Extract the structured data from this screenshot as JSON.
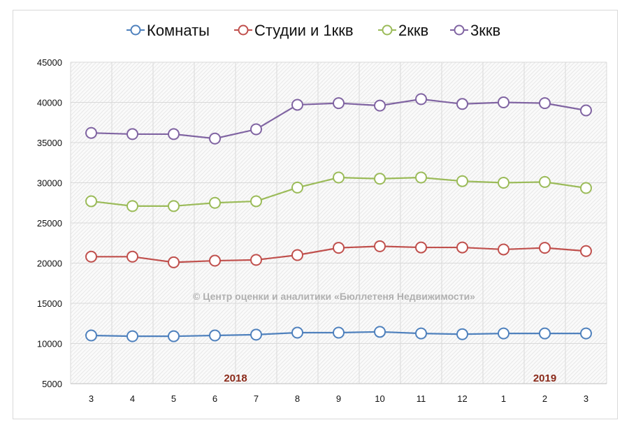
{
  "chart_data": {
    "type": "line",
    "categories": [
      "3",
      "4",
      "5",
      "6",
      "7",
      "8",
      "9",
      "10",
      "11",
      "12",
      "1",
      "2",
      "3"
    ],
    "year_labels": [
      {
        "text": "2018",
        "at_index": 3.5
      },
      {
        "text": "2019",
        "at_index": 11
      }
    ],
    "ylim": [
      5000,
      45000
    ],
    "yticks": [
      5000,
      10000,
      15000,
      20000,
      25000,
      30000,
      35000,
      40000,
      45000
    ],
    "grid": true,
    "legend_position": "top",
    "watermark": "© Центр оценки и аналитики «Бюллетеня Недвижимости»",
    "series": [
      {
        "name": "Комнаты",
        "color": "#4f81bd",
        "values": [
          11000,
          10900,
          10900,
          11000,
          11100,
          11350,
          11350,
          11450,
          11250,
          11150,
          11250,
          11250,
          11250
        ]
      },
      {
        "name": "Студии и 1ккв",
        "color": "#c0504d",
        "values": [
          20800,
          20800,
          20100,
          20300,
          20400,
          21000,
          21900,
          22100,
          21950,
          21950,
          21700,
          21900,
          21500
        ]
      },
      {
        "name": "2ккв",
        "color": "#9bbb59",
        "values": [
          27700,
          27100,
          27100,
          27500,
          27700,
          29400,
          30650,
          30500,
          30650,
          30200,
          30000,
          30100,
          29350
        ]
      },
      {
        "name": "3ккв",
        "color": "#8064a2",
        "values": [
          36200,
          36050,
          36050,
          35500,
          36650,
          39700,
          39900,
          39600,
          40400,
          39800,
          40000,
          39900,
          39000
        ]
      }
    ]
  }
}
